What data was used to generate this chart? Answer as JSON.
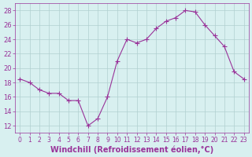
{
  "x": [
    0,
    1,
    2,
    3,
    4,
    5,
    6,
    7,
    8,
    9,
    10,
    11,
    12,
    13,
    14,
    15,
    16,
    17,
    18,
    19,
    20,
    21,
    22,
    23
  ],
  "y": [
    18.5,
    18.0,
    17.0,
    16.5,
    16.5,
    15.5,
    15.5,
    12.0,
    13.0,
    16.0,
    21.0,
    24.0,
    23.5,
    24.0,
    25.5,
    26.5,
    27.0,
    28.0,
    27.8,
    26.0,
    24.5,
    23.0,
    19.5,
    18.5
  ],
  "line_color": "#993399",
  "marker": "+",
  "marker_color": "#993399",
  "bg_color": "#d8f0f0",
  "grid_color": "#b0d0d0",
  "xlabel": "Windchill (Refroidissement éolien,°C)",
  "xlabel_color": "#993399",
  "tick_color": "#993399",
  "ylim": [
    11,
    29
  ],
  "xlim": [
    -0.5,
    23.5
  ],
  "yticks": [
    12,
    14,
    16,
    18,
    20,
    22,
    24,
    26,
    28
  ],
  "xticks": [
    0,
    1,
    2,
    3,
    4,
    5,
    6,
    7,
    8,
    9,
    10,
    11,
    12,
    13,
    14,
    15,
    16,
    17,
    18,
    19,
    20,
    21,
    22,
    23
  ]
}
